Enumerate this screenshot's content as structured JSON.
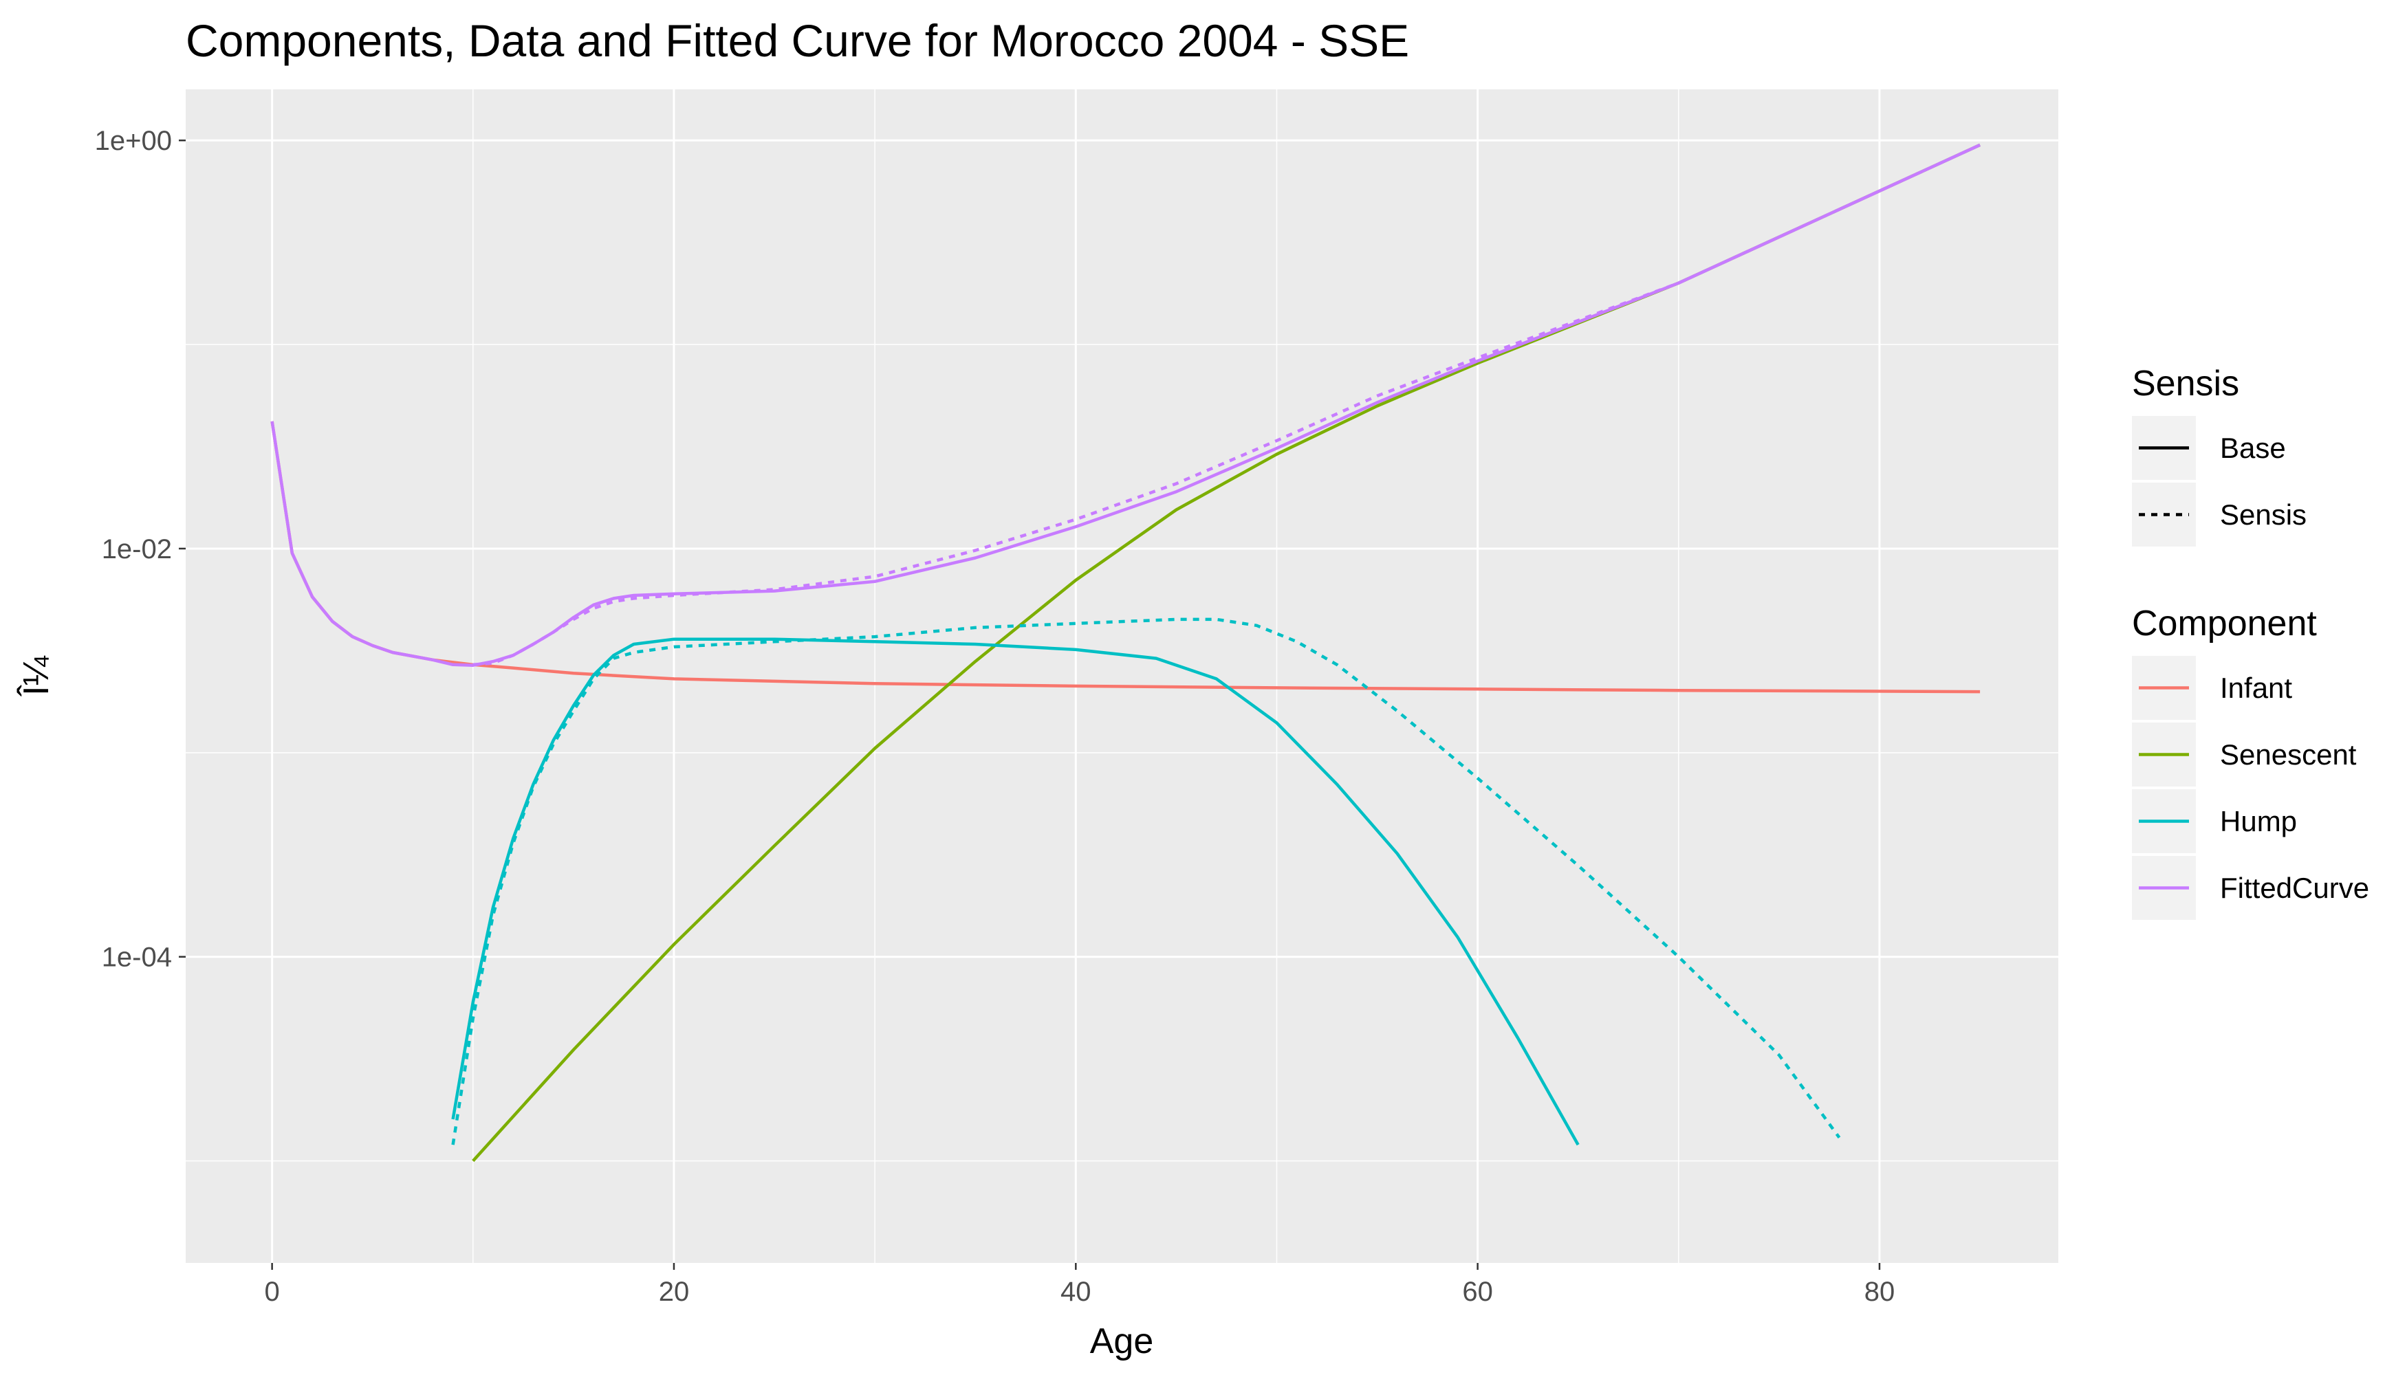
{
  "chart_data": {
    "type": "line",
    "title": "Components, Data and Fitted Curve for Morocco 2004 - SSE",
    "xlabel": "Age",
    "ylabel": "Î¼",
    "xlim": [
      -4.3,
      88.9
    ],
    "ylim_log10": [
      -5.5,
      0.25
    ],
    "y_scale": "log10",
    "x_ticks": [
      0,
      20,
      40,
      60,
      80
    ],
    "x_tick_labels": [
      "0",
      "20",
      "40",
      "60",
      "80"
    ],
    "y_ticks": [
      0.0001,
      0.01,
      1.0
    ],
    "y_tick_labels": [
      "1e-04",
      "1e-02",
      "1e+00"
    ],
    "grid": true,
    "legend_placement": "right",
    "colors": {
      "Infant": "#F8766D",
      "Senescent": "#7CAE00",
      "Hump": "#00BFC4",
      "FittedCurve": "#C77CFF",
      "panel_background": "#EBEBEB",
      "grid": "#FFFFFF"
    },
    "legends": [
      {
        "title": "Sensis",
        "entries": [
          {
            "label": "Base",
            "linetype": "solid"
          },
          {
            "label": "Sensis",
            "linetype": "dashed"
          }
        ]
      },
      {
        "title": "Component",
        "entries": [
          {
            "label": "Infant",
            "color": "#F8766D"
          },
          {
            "label": "Senescent",
            "color": "#7CAE00"
          },
          {
            "label": "Hump",
            "color": "#00BFC4"
          },
          {
            "label": "FittedCurve",
            "color": "#C77CFF"
          }
        ]
      }
    ],
    "series": [
      {
        "component": "Infant",
        "sensis": "Base",
        "x": [
          0,
          1,
          2,
          3,
          4,
          5,
          6,
          8,
          10,
          12,
          15,
          20,
          30,
          40,
          50,
          60,
          70,
          85
        ],
        "y": [
          0.042,
          0.0095,
          0.0058,
          0.0044,
          0.0037,
          0.00335,
          0.0031,
          0.00285,
          0.0027,
          0.0026,
          0.00245,
          0.0023,
          0.00218,
          0.00212,
          0.00208,
          0.00205,
          0.00202,
          0.00199
        ]
      },
      {
        "component": "Senescent",
        "sensis": "Base",
        "x": [
          10,
          15,
          20,
          25,
          30,
          35,
          40,
          45,
          50,
          55,
          60,
          70,
          85
        ],
        "y": [
          1e-05,
          3.5e-05,
          0.000115,
          0.00035,
          0.00105,
          0.0028,
          0.007,
          0.0155,
          0.029,
          0.05,
          0.081,
          0.2,
          0.95
        ]
      },
      {
        "component": "Hump",
        "sensis": "Base",
        "x": [
          9,
          10,
          11,
          12,
          13,
          14,
          15,
          16,
          17,
          18,
          20,
          25,
          30,
          35,
          40,
          44,
          47,
          50,
          53,
          56,
          59,
          62,
          65
        ],
        "y": [
          1.6e-05,
          6e-05,
          0.000175,
          0.00038,
          0.0007,
          0.00115,
          0.0017,
          0.0024,
          0.003,
          0.0034,
          0.0036,
          0.0036,
          0.0035,
          0.0034,
          0.0032,
          0.0029,
          0.0023,
          0.0014,
          0.0007,
          0.00032,
          0.000125,
          4e-05,
          1.2e-05
        ]
      },
      {
        "component": "Hump",
        "sensis": "Sensis",
        "x": [
          9,
          10,
          11,
          12,
          13,
          14,
          15,
          16,
          17,
          18,
          20,
          25,
          30,
          35,
          40,
          45,
          47,
          49,
          51,
          53,
          56,
          60,
          65,
          70,
          75,
          78
        ],
        "y": [
          1.2e-05,
          5e-05,
          0.00016,
          0.00036,
          0.00068,
          0.0011,
          0.0016,
          0.0023,
          0.0029,
          0.0031,
          0.0033,
          0.0035,
          0.0037,
          0.0041,
          0.0043,
          0.0045,
          0.0045,
          0.0042,
          0.0035,
          0.0027,
          0.0016,
          0.00075,
          0.00028,
          0.0001,
          3.3e-05,
          1.3e-05
        ]
      },
      {
        "component": "FittedCurve",
        "sensis": "Base",
        "x": [
          0,
          1,
          2,
          3,
          4,
          5,
          6,
          8,
          9,
          10,
          11,
          12,
          13,
          14,
          15,
          16,
          17,
          18,
          20,
          25,
          30,
          35,
          40,
          45,
          50,
          55,
          60,
          70,
          85
        ],
        "y": [
          0.042,
          0.0095,
          0.0058,
          0.0044,
          0.0037,
          0.00335,
          0.0031,
          0.00285,
          0.0027,
          0.00268,
          0.0028,
          0.003,
          0.0034,
          0.0039,
          0.0046,
          0.0053,
          0.0057,
          0.0059,
          0.006,
          0.0062,
          0.0069,
          0.009,
          0.0128,
          0.019,
          0.031,
          0.052,
          0.083,
          0.2,
          0.95
        ]
      },
      {
        "component": "FittedCurve",
        "sensis": "Sensis",
        "x": [
          10,
          11,
          12,
          13,
          14,
          15,
          16,
          17,
          18,
          20,
          25,
          30,
          35,
          40,
          45,
          50,
          55,
          60,
          70,
          85
        ],
        "y": [
          0.0027,
          0.00275,
          0.003,
          0.0034,
          0.0039,
          0.0045,
          0.0051,
          0.0055,
          0.0057,
          0.0059,
          0.0063,
          0.0073,
          0.0098,
          0.0139,
          0.0208,
          0.0338,
          0.056,
          0.086,
          0.2,
          0.95
        ]
      }
    ]
  }
}
